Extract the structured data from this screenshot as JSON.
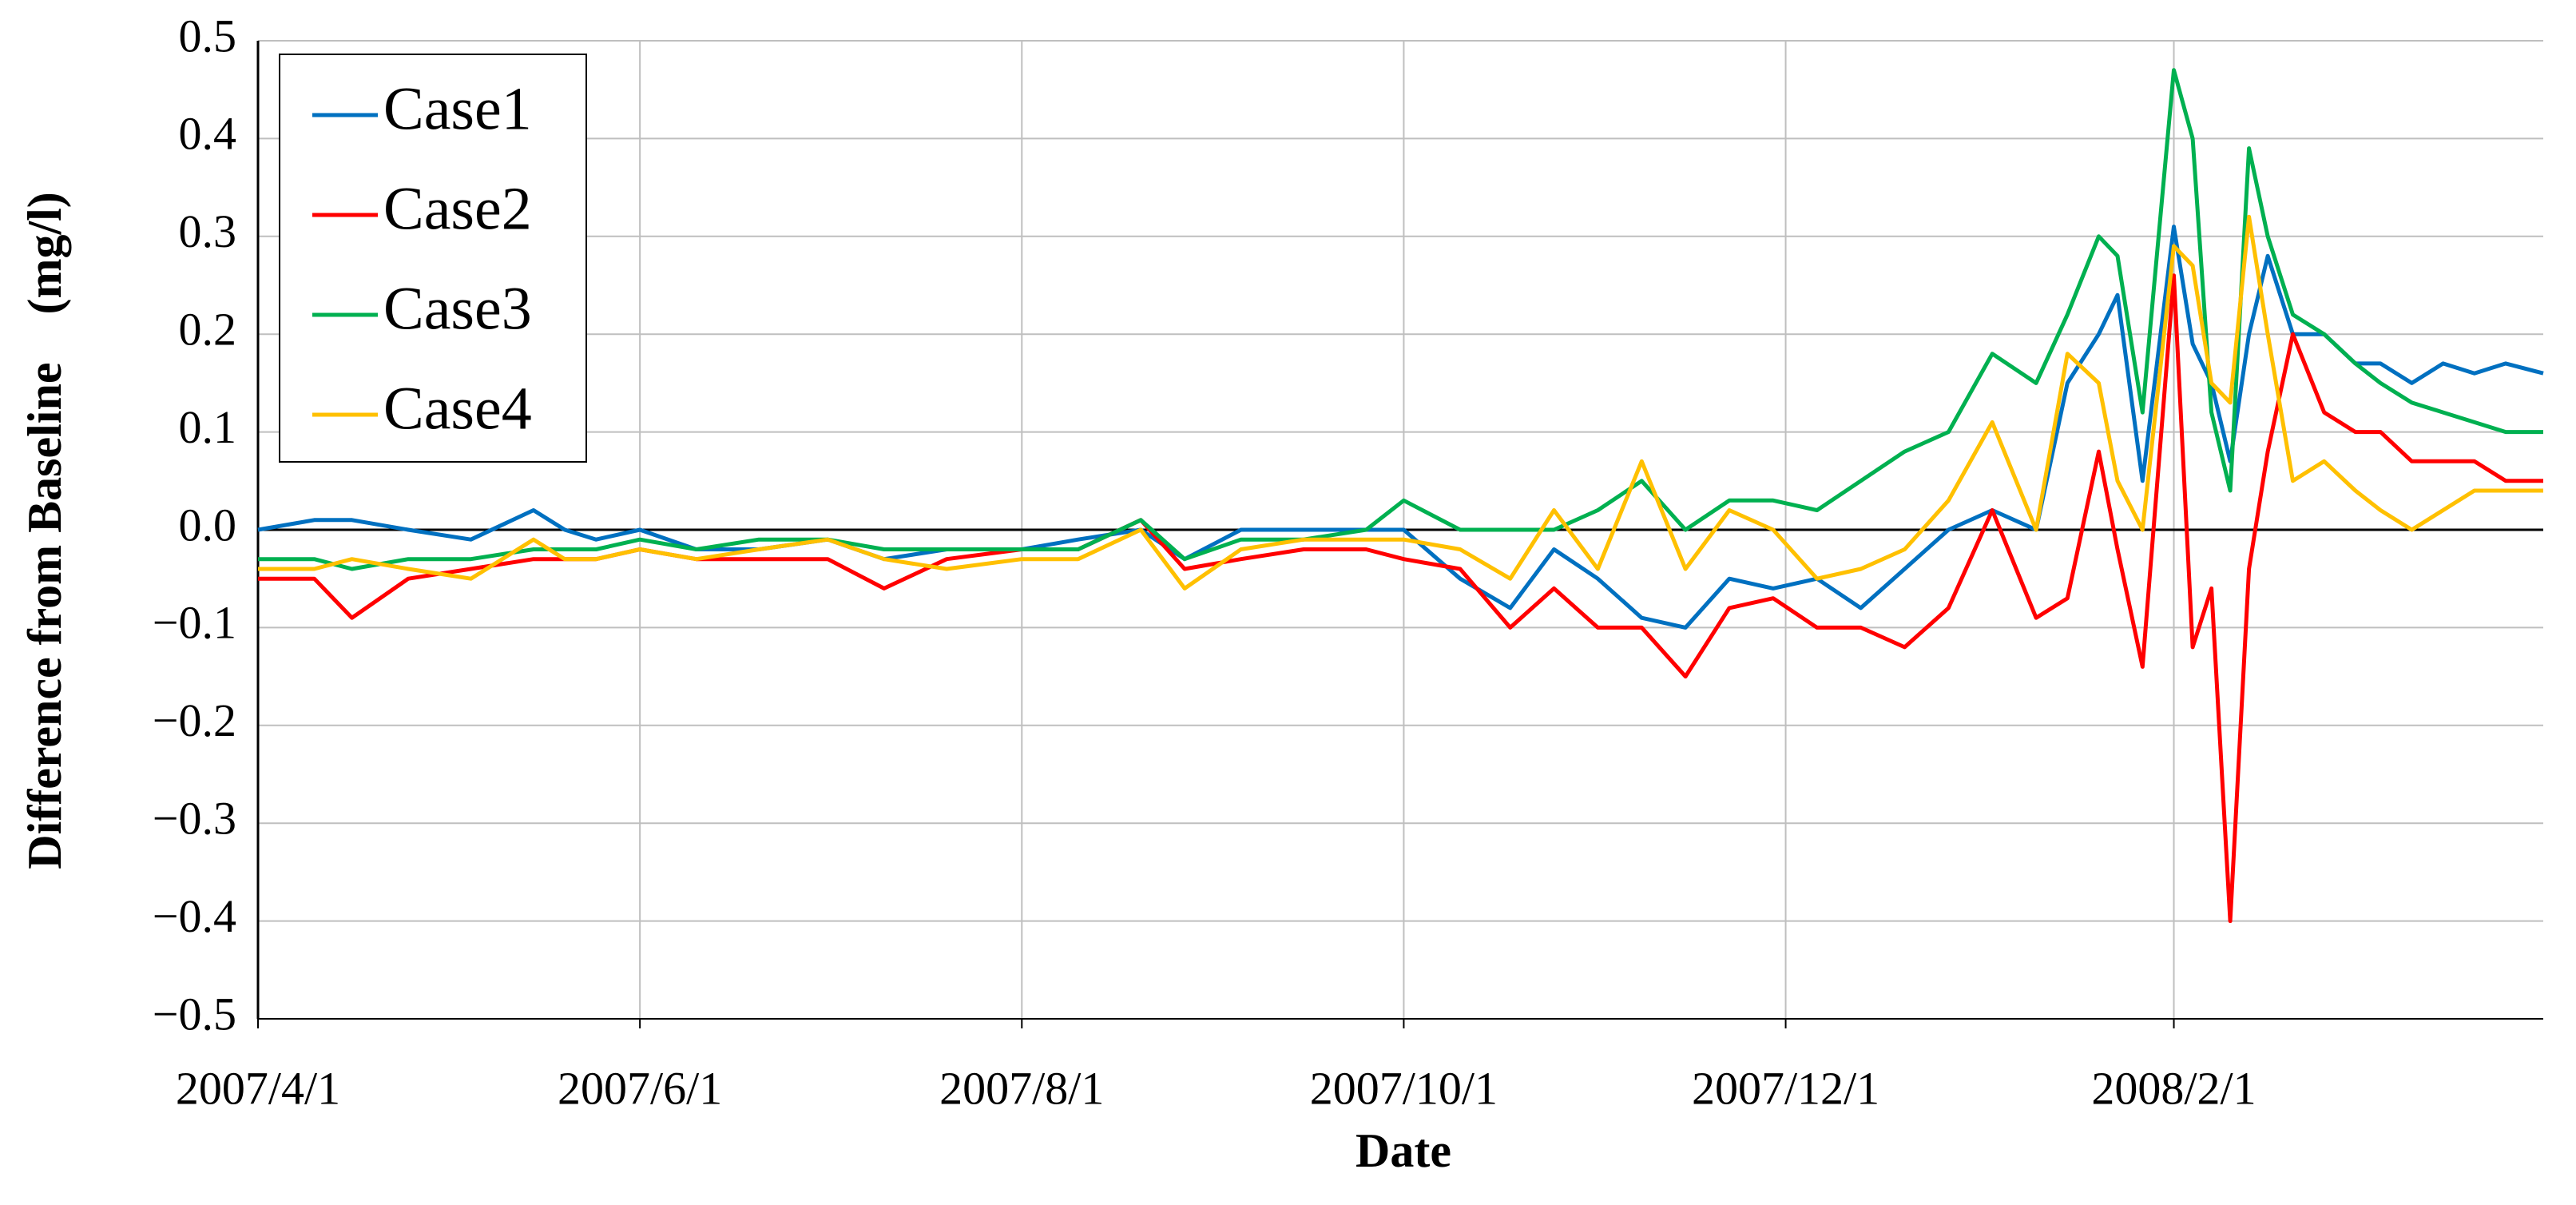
{
  "chart_data": {
    "type": "line",
    "x_label": "Date",
    "y_label": "Difference from Baseline    (mg/l)",
    "x": [
      "2007/4/1",
      "2007/4/10",
      "2007/4/16",
      "2007/4/25",
      "2007/5/5",
      "2007/5/15",
      "2007/5/20",
      "2007/5/25",
      "2007/6/1",
      "2007/6/10",
      "2007/6/20",
      "2007/7/1",
      "2007/7/10",
      "2007/7/20",
      "2007/8/1",
      "2007/8/10",
      "2007/8/20",
      "2007/8/27",
      "2007/9/5",
      "2007/9/15",
      "2007/9/25",
      "2007/10/1",
      "2007/10/10",
      "2007/10/18",
      "2007/10/25",
      "2007/11/1",
      "2007/11/8",
      "2007/11/15",
      "2007/11/22",
      "2007/11/29",
      "2007/12/6",
      "2007/12/13",
      "2007/12/20",
      "2007/12/27",
      "2008/1/3",
      "2008/1/10",
      "2008/1/15",
      "2008/1/20",
      "2008/1/23",
      "2008/1/27",
      "2008/2/1",
      "2008/2/4",
      "2008/2/7",
      "2008/2/10",
      "2008/2/13",
      "2008/2/16",
      "2008/2/20",
      "2008/2/25",
      "2008/3/1",
      "2008/3/5",
      "2008/3/10",
      "2008/3/15",
      "2008/3/20",
      "2008/3/25",
      "2008/3/31"
    ],
    "series": [
      {
        "name": "Case1",
        "color": "#0070c0",
        "values": [
          0.0,
          0.01,
          0.01,
          0.0,
          -0.01,
          0.02,
          0.0,
          -0.01,
          0.0,
          -0.02,
          -0.02,
          -0.01,
          -0.03,
          -0.02,
          -0.02,
          -0.01,
          0.0,
          -0.03,
          0.0,
          0.0,
          0.0,
          0.0,
          -0.05,
          -0.08,
          -0.02,
          -0.05,
          -0.09,
          -0.1,
          -0.05,
          -0.06,
          -0.05,
          -0.08,
          -0.04,
          0.0,
          0.02,
          0.0,
          0.15,
          0.2,
          0.24,
          0.05,
          0.31,
          0.19,
          0.15,
          0.07,
          0.2,
          0.28,
          0.2,
          0.2,
          0.17,
          0.17,
          0.15,
          0.17,
          0.16,
          0.17,
          0.16
        ]
      },
      {
        "name": "Case2",
        "color": "#ff0000",
        "values": [
          -0.05,
          -0.05,
          -0.09,
          -0.05,
          -0.04,
          -0.03,
          -0.03,
          -0.03,
          -0.02,
          -0.03,
          -0.03,
          -0.03,
          -0.06,
          -0.03,
          -0.02,
          -0.02,
          0.01,
          -0.04,
          -0.03,
          -0.02,
          -0.02,
          -0.03,
          -0.04,
          -0.1,
          -0.06,
          -0.1,
          -0.1,
          -0.15,
          -0.08,
          -0.07,
          -0.1,
          -0.1,
          -0.12,
          -0.08,
          0.02,
          -0.09,
          -0.07,
          0.08,
          -0.02,
          -0.14,
          0.26,
          -0.12,
          -0.06,
          -0.4,
          -0.04,
          0.08,
          0.2,
          0.12,
          0.1,
          0.1,
          0.07,
          0.07,
          0.07,
          0.05,
          0.05
        ]
      },
      {
        "name": "Case3",
        "color": "#00b050",
        "values": [
          -0.03,
          -0.03,
          -0.04,
          -0.03,
          -0.03,
          -0.02,
          -0.02,
          -0.02,
          -0.01,
          -0.02,
          -0.01,
          -0.01,
          -0.02,
          -0.02,
          -0.02,
          -0.02,
          0.01,
          -0.03,
          -0.01,
          -0.01,
          0.0,
          0.03,
          0.0,
          0.0,
          0.0,
          0.02,
          0.05,
          0.0,
          0.03,
          0.03,
          0.02,
          0.05,
          0.08,
          0.1,
          0.18,
          0.15,
          0.22,
          0.3,
          0.28,
          0.12,
          0.47,
          0.4,
          0.12,
          0.04,
          0.39,
          0.3,
          0.22,
          0.2,
          0.17,
          0.15,
          0.13,
          0.12,
          0.11,
          0.1,
          0.1
        ]
      },
      {
        "name": "Case4",
        "color": "#ffc000",
        "values": [
          -0.04,
          -0.04,
          -0.03,
          -0.04,
          -0.05,
          -0.01,
          -0.03,
          -0.03,
          -0.02,
          -0.03,
          -0.02,
          -0.01,
          -0.03,
          -0.04,
          -0.03,
          -0.03,
          0.0,
          -0.06,
          -0.02,
          -0.01,
          -0.01,
          -0.01,
          -0.02,
          -0.05,
          0.02,
          -0.04,
          0.07,
          -0.04,
          0.02,
          0.0,
          -0.05,
          -0.04,
          -0.02,
          0.03,
          0.11,
          0.0,
          0.18,
          0.15,
          0.05,
          0.0,
          0.29,
          0.27,
          0.15,
          0.13,
          0.32,
          0.2,
          0.05,
          0.07,
          0.04,
          0.02,
          0.0,
          0.02,
          0.04,
          0.04,
          0.04
        ]
      }
    ],
    "xlim": [
      "2007/4/1",
      "2008/3/31"
    ],
    "xticks": [
      "2007/4/1",
      "2007/6/1",
      "2007/8/1",
      "2007/10/1",
      "2007/12/1",
      "2008/2/1"
    ],
    "ylim": [
      -0.5,
      0.5
    ],
    "yticks": [
      {
        "value": -0.5,
        "label": "−0.5"
      },
      {
        "value": -0.4,
        "label": "−0.4"
      },
      {
        "value": -0.3,
        "label": "−0.3"
      },
      {
        "value": -0.2,
        "label": "−0.2"
      },
      {
        "value": -0.1,
        "label": "−0.1"
      },
      {
        "value": 0,
        "label": "0.0"
      },
      0.1,
      0.2,
      0.3,
      0.4,
      0.5
    ],
    "grid": true,
    "legend": "top-left"
  }
}
